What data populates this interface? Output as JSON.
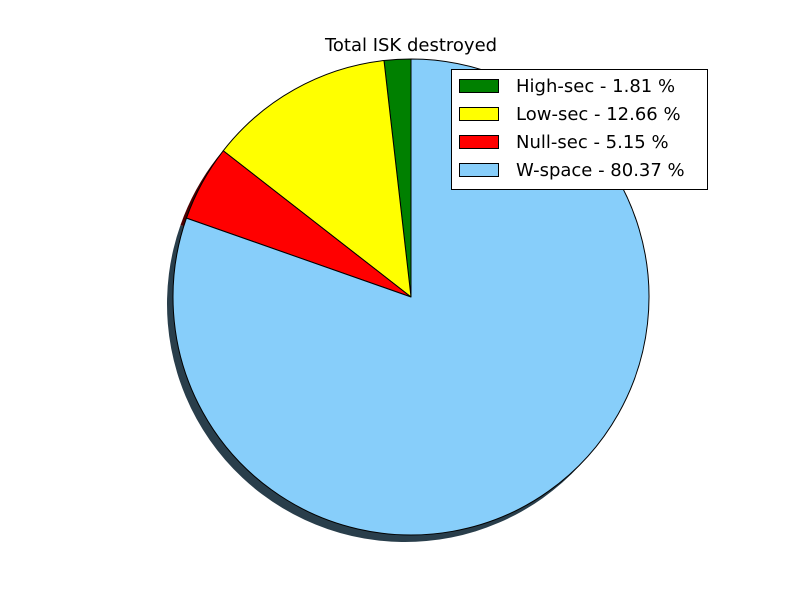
{
  "chart_data": {
    "type": "pie",
    "title": "Total ISK destroyed",
    "shadow": true,
    "start_angle_deg": 90,
    "direction": "counterclockwise",
    "legend_position": "upper right",
    "slices": [
      {
        "label": "High-sec - 1.81 %",
        "value": 1.81,
        "color": "#008000"
      },
      {
        "label": "Low-sec - 12.66 %",
        "value": 12.66,
        "color": "#ffff00"
      },
      {
        "label": "Null-sec - 5.15 %",
        "value": 5.15,
        "color": "#ff0000"
      },
      {
        "label": "W-space - 80.37 %",
        "value": 80.37,
        "color": "#87cefa"
      }
    ]
  }
}
